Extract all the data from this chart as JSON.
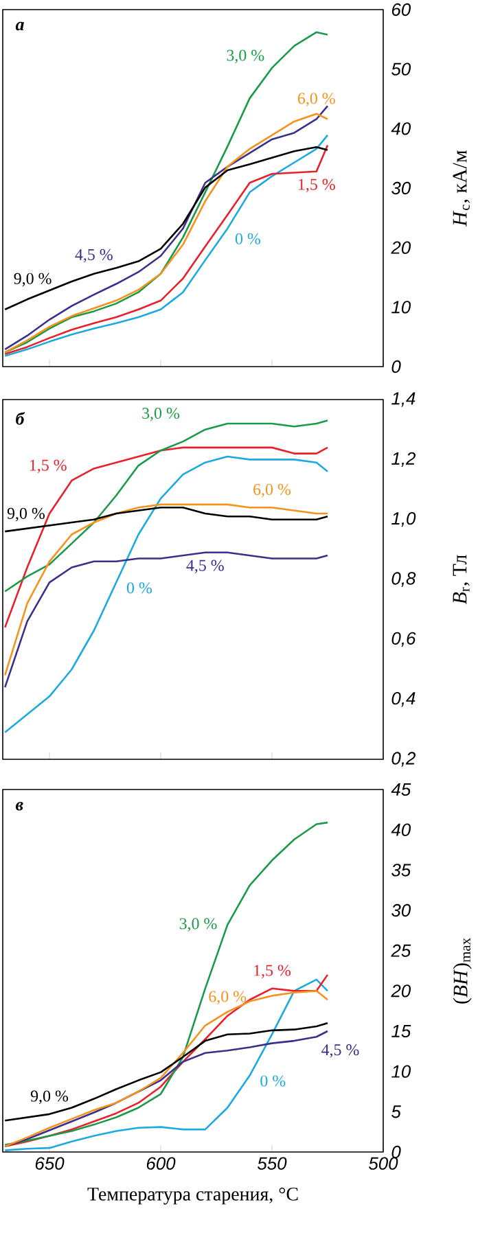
{
  "chart_data": [
    {
      "type": "line",
      "title": "а",
      "ylabel": "*H*$_{c}$, кА/м",
      "tick_labels": "y",
      "x": [
        670,
        660,
        650,
        640,
        630,
        620,
        610,
        600,
        590,
        580,
        570,
        560,
        550,
        540,
        530,
        525
      ],
      "xlim": [
        671,
        500
      ],
      "xticks": [
        650,
        600,
        550,
        500
      ],
      "ylim": [
        0,
        60
      ],
      "yticks": [
        0,
        10,
        20,
        30,
        40,
        50,
        60
      ],
      "series": [
        {
          "name": "0 %",
          "color": "#1ba9e1",
          "values": [
            1.8,
            2.9,
            4.2,
            5.4,
            6.4,
            7.3,
            8.3,
            9.6,
            12.5,
            17.9,
            23.2,
            29.3,
            32,
            34.3,
            36.6,
            38.9
          ]
        },
        {
          "name": "1,5 %",
          "color": "#e8202a",
          "values": [
            2.1,
            3.3,
            4.8,
            6.2,
            7.3,
            8.3,
            9.6,
            11.1,
            14.8,
            20.2,
            25.5,
            30.9,
            32.4,
            32.6,
            32.8,
            37.2
          ]
        },
        {
          "name": "3,0 %",
          "color": "#1a9a48",
          "values": [
            2.4,
            4.1,
            6.4,
            8.3,
            9.3,
            10.6,
            12.5,
            15.6,
            21.7,
            29.3,
            37,
            45.1,
            50.2,
            53.9,
            56.2,
            55.8
          ]
        },
        {
          "name": "4,5 %",
          "color": "#3b2e8c",
          "values": [
            2.9,
            5.2,
            7.9,
            10.2,
            12.1,
            13.9,
            15.9,
            18.6,
            23.2,
            30.9,
            33.6,
            35.9,
            38.2,
            39.3,
            41.6,
            43.8
          ]
        },
        {
          "name": "6,0 %",
          "color": "#f5921e",
          "values": [
            2.4,
            4.4,
            6.7,
            8.5,
            9.8,
            11.1,
            12.9,
            15.6,
            20.5,
            27.8,
            33.6,
            36.6,
            38.9,
            41.2,
            42.5,
            41.6
          ]
        },
        {
          "name": "9,0 %",
          "color": "#000000",
          "values": [
            9.6,
            11.3,
            12.8,
            14.3,
            15.6,
            16.6,
            17.7,
            19.8,
            24,
            30.1,
            33,
            34,
            35.1,
            36.2,
            36.9,
            36.4
          ]
        }
      ]
    },
    {
      "type": "line",
      "title": "б",
      "ylabel": "*B*$_{r}$, Тл",
      "tick_labels": "y",
      "x": [
        670,
        660,
        650,
        640,
        630,
        620,
        610,
        600,
        590,
        580,
        570,
        560,
        550,
        540,
        530,
        525
      ],
      "xlim": [
        671,
        500
      ],
      "xticks": [
        650,
        600,
        550,
        500
      ],
      "ylim": [
        0.2,
        1.4
      ],
      "yticks": [
        {
          "value": 0.2,
          "label": "0,2"
        },
        {
          "value": 0.4,
          "label": "0,4"
        },
        {
          "value": 0.6,
          "label": "0,6"
        },
        {
          "value": 0.8,
          "label": "0,8"
        },
        {
          "value": 1.0,
          "label": "1,0"
        },
        {
          "value": 1.2,
          "label": "1,2"
        },
        {
          "value": 1.4,
          "label": "1,4"
        }
      ],
      "series": [
        {
          "name": "0 %",
          "color": "#1ba9e1",
          "values": [
            0.29,
            0.35,
            0.41,
            0.5,
            0.63,
            0.79,
            0.95,
            1.07,
            1.15,
            1.19,
            1.21,
            1.2,
            1.2,
            1.2,
            1.19,
            1.16
          ]
        },
        {
          "name": "1,5 %",
          "color": "#e8202a",
          "values": [
            0.64,
            0.84,
            1.02,
            1.13,
            1.17,
            1.19,
            1.21,
            1.23,
            1.24,
            1.24,
            1.24,
            1.24,
            1.24,
            1.22,
            1.22,
            1.24
          ]
        },
        {
          "name": "3,0 %",
          "color": "#1a9a48",
          "values": [
            0.76,
            0.81,
            0.85,
            0.92,
            0.99,
            1.08,
            1.18,
            1.23,
            1.26,
            1.3,
            1.32,
            1.32,
            1.32,
            1.31,
            1.32,
            1.33
          ]
        },
        {
          "name": "4,5 %",
          "color": "#3b2e8c",
          "values": [
            0.44,
            0.66,
            0.79,
            0.84,
            0.86,
            0.86,
            0.87,
            0.87,
            0.88,
            0.89,
            0.89,
            0.88,
            0.87,
            0.87,
            0.87,
            0.88
          ]
        },
        {
          "name": "6,0 %",
          "color": "#f5921e",
          "values": [
            0.48,
            0.72,
            0.86,
            0.95,
            0.99,
            1.02,
            1.04,
            1.05,
            1.05,
            1.05,
            1.05,
            1.04,
            1.04,
            1.03,
            1.02,
            1.02
          ]
        },
        {
          "name": "9,0 %",
          "color": "#000000",
          "values": [
            0.96,
            0.97,
            0.98,
            0.99,
            1.0,
            1.02,
            1.03,
            1.04,
            1.04,
            1.02,
            1.01,
            1.01,
            1.0,
            1.0,
            1.0,
            1.01
          ]
        }
      ]
    },
    {
      "type": "line",
      "title": "в",
      "ylabel": "(*BH*)$_{max}$",
      "xlabel": "Температура старения, °C",
      "x": [
        670,
        660,
        650,
        640,
        630,
        620,
        610,
        600,
        590,
        580,
        570,
        560,
        550,
        540,
        530,
        525
      ],
      "xlim": [
        671,
        500
      ],
      "xticks": [
        650,
        600,
        550,
        500
      ],
      "ylim": [
        0,
        45
      ],
      "yticks": [
        0,
        5,
        10,
        15,
        20,
        25,
        30,
        35,
        40,
        45
      ],
      "series": [
        {
          "name": "0 %",
          "color": "#1ba9e1",
          "values": [
            0.2,
            0.4,
            0.5,
            1.3,
            2.0,
            2.6,
            3.0,
            3.1,
            2.8,
            2.8,
            5.5,
            9.5,
            14.6,
            20.0,
            21.4,
            20.0
          ]
        },
        {
          "name": "1,5 %",
          "color": "#e8202a",
          "values": [
            0.7,
            1.3,
            2.0,
            2.8,
            3.8,
            4.8,
            6.1,
            8.1,
            11.2,
            14.0,
            16.9,
            18.9,
            20.3,
            20.0,
            20.0,
            22.0
          ]
        },
        {
          "name": "3,0 %",
          "color": "#1a9a48",
          "values": [
            0.9,
            1.4,
            2.0,
            2.6,
            3.4,
            4.3,
            5.5,
            7.2,
            11.8,
            20.3,
            28.2,
            33.1,
            36.2,
            38.8,
            40.7,
            40.9
          ]
        },
        {
          "name": "4,5 %",
          "color": "#3b2e8c",
          "values": [
            0.7,
            1.6,
            2.7,
            3.8,
            4.9,
            6.1,
            7.5,
            8.9,
            11.2,
            12.3,
            12.6,
            13.0,
            13.5,
            13.8,
            14.3,
            15.0
          ]
        },
        {
          "name": "6,0 %",
          "color": "#f5921e",
          "values": [
            0.7,
            1.8,
            3.0,
            4.1,
            5.2,
            6.1,
            7.5,
            9.2,
            12.3,
            15.7,
            17.4,
            18.7,
            19.4,
            19.8,
            20.0,
            18.9
          ]
        },
        {
          "name": "9,0 %",
          "color": "#000000",
          "values": [
            3.9,
            4.3,
            4.7,
            5.5,
            6.6,
            7.8,
            8.9,
            9.9,
            11.8,
            13.8,
            14.6,
            14.7,
            15.1,
            15.2,
            15.6,
            16.0
          ]
        }
      ]
    }
  ]
}
